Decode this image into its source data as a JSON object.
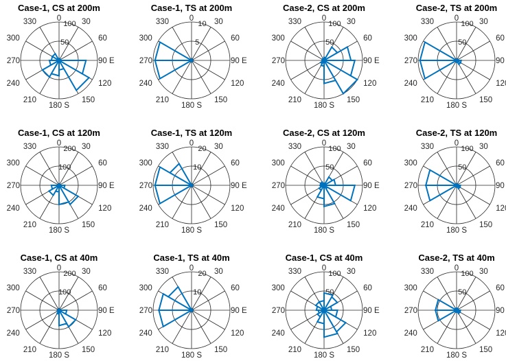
{
  "colors": {
    "grid": "#262626",
    "series": "#0072BD",
    "background": "#ffffff"
  },
  "angle_labels": [
    "0",
    "30",
    "60",
    "90 E",
    "120",
    "150",
    "180 S",
    "210",
    "240",
    "270",
    "300",
    "330"
  ],
  "chart_data": [
    {
      "type": "polar",
      "title": "Case-1, CS at 200m",
      "rmax": 100,
      "ring_labels": [
        "50",
        "100"
      ],
      "angle_labels": [
        "0",
        "30",
        "60",
        "90 E",
        "120",
        "150",
        "180 S",
        "210",
        "240",
        "270",
        "300",
        "330"
      ],
      "bin_edges_deg": [
        0,
        30,
        60,
        90,
        120,
        150,
        180,
        210,
        240,
        270,
        300,
        330,
        360
      ],
      "values": [
        3,
        3,
        5,
        70,
        90,
        25,
        40,
        50,
        25,
        20,
        20,
        5
      ]
    },
    {
      "type": "polar",
      "title": "Case-1, TS at 200m",
      "rmax": 10,
      "ring_labels": [
        "5",
        "10"
      ],
      "angle_labels": [
        "0",
        "30",
        "60",
        "90 E",
        "120",
        "150",
        "180 S",
        "210",
        "240",
        "270",
        "300",
        "330"
      ],
      "bin_edges_deg": [
        0,
        30,
        60,
        90,
        120,
        150,
        180,
        210,
        240,
        270,
        300,
        330,
        360
      ],
      "values": [
        0.2,
        0.2,
        0.2,
        0.2,
        0.2,
        0.2,
        0.2,
        0.2,
        9.5,
        9.5,
        0.2,
        0.2
      ]
    },
    {
      "type": "polar",
      "title": "Case-2, CS at 200m",
      "rmax": 100,
      "ring_labels": [
        "50",
        "100"
      ],
      "angle_labels": [
        "0",
        "30",
        "60",
        "90 E",
        "120",
        "150",
        "180 S",
        "210",
        "240",
        "270",
        "300",
        "330"
      ],
      "bin_edges_deg": [
        0,
        30,
        60,
        90,
        120,
        150,
        180,
        210,
        240,
        270,
        300,
        330,
        360
      ],
      "values": [
        8,
        40,
        70,
        80,
        100,
        60,
        15,
        10,
        5,
        5,
        5,
        5
      ]
    },
    {
      "type": "polar",
      "title": "Case-2, TS at 200m",
      "rmax": 100,
      "ring_labels": [
        "50",
        "100"
      ],
      "angle_labels": [
        "0",
        "30",
        "60",
        "90 E",
        "120",
        "150",
        "180 S",
        "210",
        "240",
        "270",
        "300",
        "330"
      ],
      "bin_edges_deg": [
        0,
        30,
        60,
        90,
        120,
        150,
        180,
        210,
        240,
        270,
        300,
        330,
        360
      ],
      "values": [
        2,
        2,
        5,
        12,
        12,
        5,
        2,
        2,
        95,
        95,
        2,
        2
      ]
    },
    {
      "type": "polar",
      "title": "Case-1, CS at 120m",
      "rmax": 200,
      "ring_labels": [
        "100",
        "200"
      ],
      "angle_labels": [
        "0",
        "30",
        "60",
        "90 E",
        "120",
        "150",
        "180 S",
        "210",
        "240",
        "270",
        "300",
        "330"
      ],
      "bin_edges_deg": [
        0,
        30,
        60,
        90,
        120,
        150,
        180,
        210,
        240,
        270,
        300,
        330,
        360
      ],
      "values": [
        5,
        5,
        5,
        30,
        115,
        100,
        35,
        60,
        40,
        5,
        5,
        5
      ]
    },
    {
      "type": "polar",
      "title": "Case-1, TS at 120m",
      "rmax": 20,
      "ring_labels": [
        "10",
        "20"
      ],
      "angle_labels": [
        "0",
        "30",
        "60",
        "90 E",
        "120",
        "150",
        "180 S",
        "210",
        "240",
        "270",
        "300",
        "330"
      ],
      "bin_edges_deg": [
        0,
        30,
        60,
        90,
        120,
        150,
        180,
        210,
        240,
        270,
        300,
        330,
        360
      ],
      "values": [
        0.2,
        0.2,
        0.2,
        0.2,
        0.2,
        0.2,
        0.2,
        0.2,
        19,
        19,
        13,
        0.2
      ]
    },
    {
      "type": "polar",
      "title": "Case-2, CS at 120m",
      "rmax": 100,
      "ring_labels": [
        "50",
        "100"
      ],
      "angle_labels": [
        "0",
        "30",
        "60",
        "90 E",
        "120",
        "150",
        "180 S",
        "210",
        "240",
        "270",
        "300",
        "330"
      ],
      "bin_edges_deg": [
        0,
        30,
        60,
        90,
        120,
        150,
        180,
        210,
        240,
        270,
        300,
        330,
        360
      ],
      "values": [
        5,
        25,
        30,
        80,
        10,
        55,
        35,
        15,
        10,
        10,
        10,
        5
      ]
    },
    {
      "type": "polar",
      "title": "Case-2, TS at 120m",
      "rmax": 100,
      "ring_labels": [
        "50",
        "100"
      ],
      "angle_labels": [
        "0",
        "30",
        "60",
        "90 E",
        "120",
        "150",
        "180 S",
        "210",
        "240",
        "270",
        "300",
        "330"
      ],
      "bin_edges_deg": [
        0,
        30,
        60,
        90,
        120,
        150,
        180,
        210,
        240,
        270,
        300,
        330,
        360
      ],
      "values": [
        3,
        3,
        5,
        10,
        10,
        5,
        3,
        3,
        80,
        80,
        3,
        3
      ]
    },
    {
      "type": "polar",
      "title": "Case-1, CS at 40m",
      "rmax": 200,
      "ring_labels": [
        "100",
        "200"
      ],
      "angle_labels": [
        "0",
        "30",
        "60",
        "90 E",
        "120",
        "150",
        "180 S",
        "210",
        "240",
        "270",
        "300",
        "330"
      ],
      "bin_edges_deg": [
        0,
        30,
        60,
        90,
        120,
        150,
        180,
        210,
        240,
        270,
        300,
        330,
        360
      ],
      "values": [
        5,
        5,
        5,
        40,
        100,
        80,
        20,
        10,
        5,
        5,
        5,
        5
      ]
    },
    {
      "type": "polar",
      "title": "Case-1, TS at 40m",
      "rmax": 20,
      "ring_labels": [
        "10",
        "20"
      ],
      "angle_labels": [
        "0",
        "30",
        "60",
        "90 E",
        "120",
        "150",
        "180 S",
        "210",
        "240",
        "270",
        "300",
        "330"
      ],
      "bin_edges_deg": [
        0,
        30,
        60,
        90,
        120,
        150,
        180,
        210,
        240,
        270,
        300,
        330,
        360
      ],
      "values": [
        0.2,
        0.2,
        0.2,
        0.2,
        0.2,
        0.2,
        0.2,
        0.2,
        17,
        17,
        14,
        0.2
      ]
    },
    {
      "type": "polar",
      "title": "Case-1, CS at 40m",
      "rmax": 100,
      "ring_labels": [
        "50",
        "100"
      ],
      "angle_labels": [
        "0",
        "30",
        "60",
        "90 E",
        "120",
        "150",
        "180 S",
        "210",
        "240",
        "270",
        "300",
        "330"
      ],
      "bin_edges_deg": [
        0,
        30,
        60,
        90,
        120,
        150,
        180,
        210,
        240,
        270,
        300,
        330,
        360
      ],
      "values": [
        45,
        40,
        20,
        35,
        65,
        70,
        35,
        20,
        15,
        20,
        25,
        25
      ]
    },
    {
      "type": "polar",
      "title": "Case-2, TS at 40m",
      "rmax": 100,
      "ring_labels": [
        "50",
        "100"
      ],
      "angle_labels": [
        "0",
        "30",
        "60",
        "90 E",
        "120",
        "150",
        "180 S",
        "210",
        "240",
        "270",
        "300",
        "330"
      ],
      "bin_edges_deg": [
        0,
        30,
        60,
        90,
        120,
        150,
        180,
        210,
        240,
        270,
        300,
        330,
        360
      ],
      "values": [
        5,
        5,
        5,
        10,
        10,
        5,
        5,
        5,
        55,
        55,
        5,
        5
      ]
    }
  ]
}
